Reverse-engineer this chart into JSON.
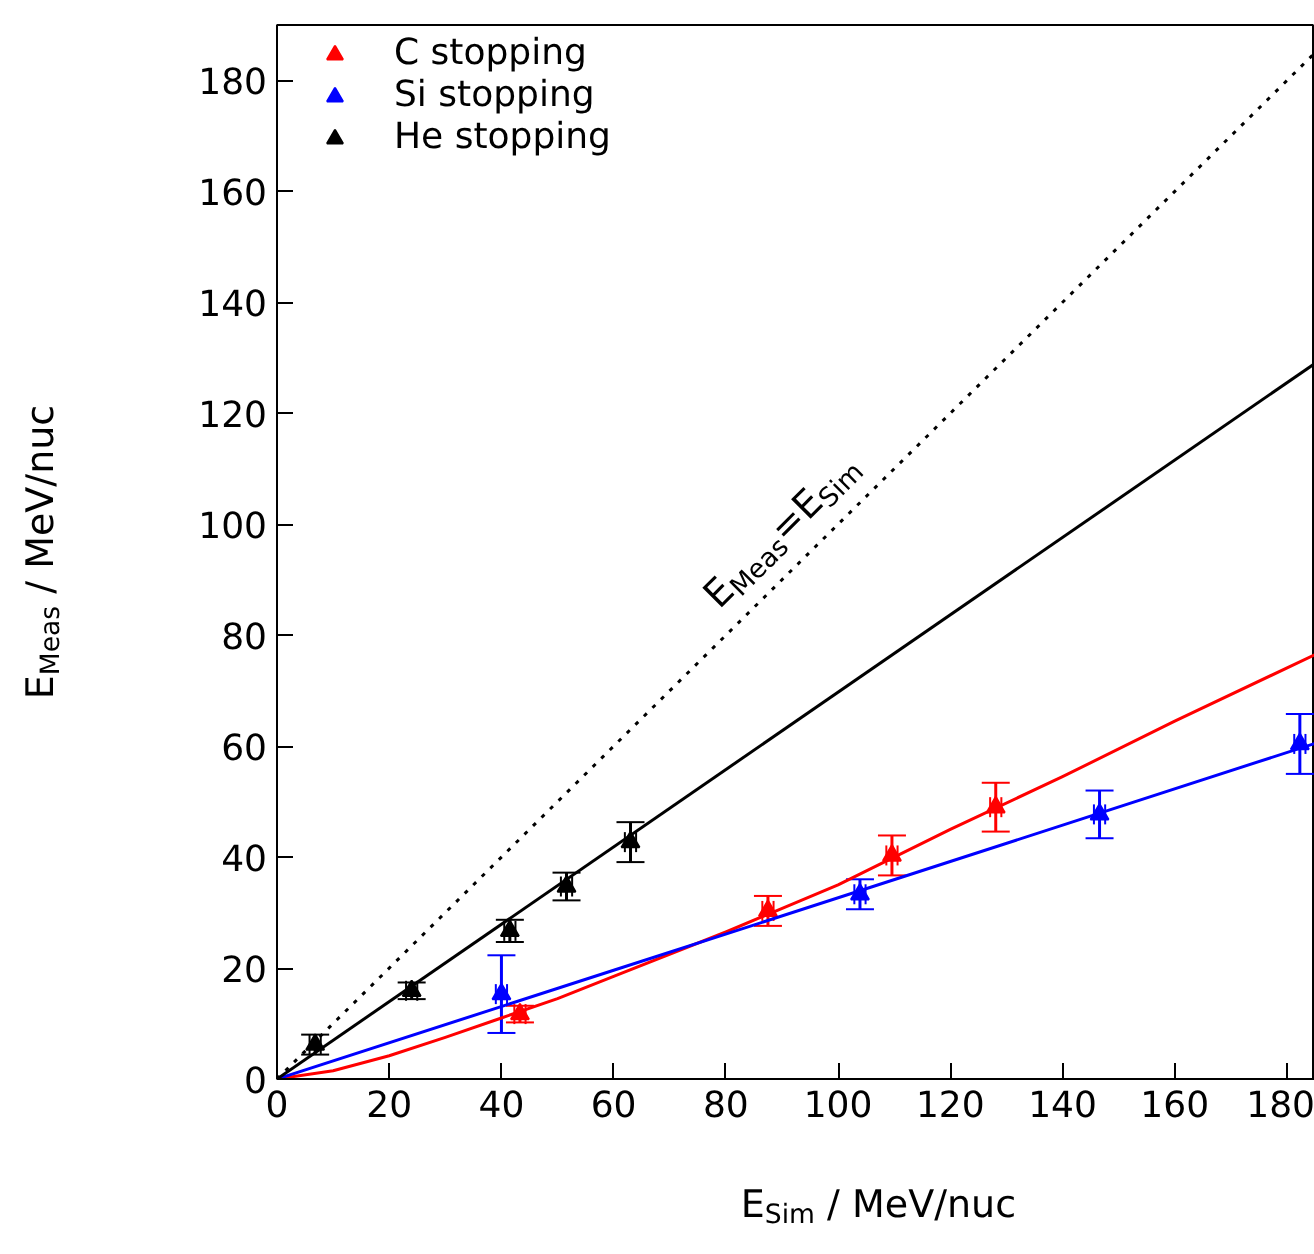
{
  "chart_data": {
    "type": "scatter",
    "xlabel": "E$_{Sim}$ / MeV/nuc",
    "ylabel": "E$_{Meas}$ / MeV/nuc",
    "xlim": [
      0,
      185
    ],
    "ylim": [
      0,
      190
    ],
    "xticks": [
      0,
      20,
      40,
      60,
      80,
      100,
      120,
      140,
      160,
      180
    ],
    "yticks": [
      0,
      20,
      40,
      60,
      80,
      100,
      120,
      140,
      160,
      180
    ],
    "grid": false,
    "legend": "top left",
    "marker": "triangle",
    "series": [
      {
        "name": "C stopping",
        "color": "#ff0000",
        "x": [
          43.3,
          87.5,
          109.6,
          128.1
        ],
        "values": [
          11.7,
          30.3,
          40.3,
          49.0
        ],
        "errors": [
          1.5,
          2.7,
          3.6,
          4.4
        ],
        "xerrors": [
          1,
          1,
          1,
          1
        ]
      },
      {
        "name": "Si stopping",
        "color": "#0000ff",
        "x": [
          40.0,
          103.9,
          146.6,
          182.3
        ],
        "values": [
          15.3,
          33.3,
          47.7,
          60.4
        ],
        "errors": [
          7.0,
          2.7,
          4.3,
          5.4
        ],
        "xerrors": [
          1,
          1,
          1,
          1
        ]
      },
      {
        "name": "He stopping",
        "color": "#000000",
        "x": [
          6.8,
          24.0,
          41.5,
          51.6,
          63.0
        ],
        "values": [
          6.2,
          15.9,
          26.7,
          34.7,
          42.7
        ],
        "errors": [
          1.8,
          1.5,
          2.0,
          2.5,
          3.6
        ],
        "xerrors": [
          1,
          1,
          1,
          1,
          1
        ]
      },
      {
        "type": "line",
        "marker": "none",
        "color": "#ff0000",
        "x": [
          0,
          10,
          20,
          30,
          40,
          50,
          60,
          80,
          100,
          120,
          140,
          160,
          185
        ],
        "values": [
          0,
          1.5,
          4.2,
          7.5,
          11,
          14.5,
          18.5,
          26.5,
          35,
          45,
          54.5,
          64.5,
          76.5
        ]
      },
      {
        "type": "line",
        "marker": "none",
        "color": "#0000ff",
        "x": [
          0,
          60,
          120,
          185
        ],
        "values": [
          0,
          19.6,
          39.2,
          60.5
        ]
      },
      {
        "type": "line",
        "marker": "none",
        "color": "#000000",
        "x": [
          0,
          185
        ],
        "values": [
          0,
          129
        ]
      },
      {
        "type": "line",
        "marker": "none",
        "color": "#000000",
        "line_style": "dotted",
        "x": [
          0,
          185
        ],
        "values": [
          0,
          185
        ]
      }
    ],
    "annotations": [
      "E$_{Meas}$=E$_{Sim}$"
    ]
  }
}
